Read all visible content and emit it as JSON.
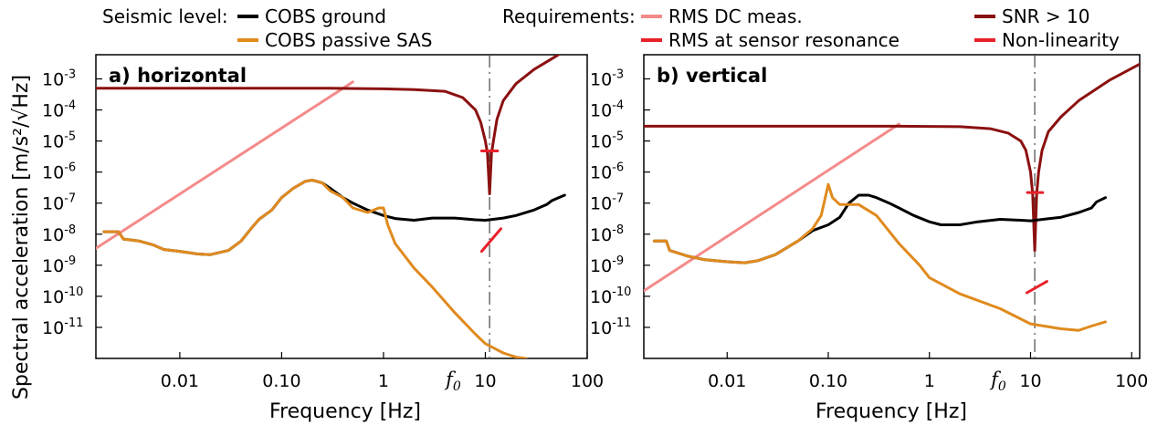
{
  "legend": {
    "seismic_title": "Seismic level:",
    "requirements_title": "Requirements:",
    "items": [
      {
        "key": "cobs_ground",
        "label": "COBS ground",
        "color": "#000000"
      },
      {
        "key": "cobs_sas",
        "label": "COBS passive SAS",
        "color": "#e08a1e"
      },
      {
        "key": "rms_dc",
        "label": "RMS DC meas.",
        "color": "#f48a8a"
      },
      {
        "key": "rms_res",
        "label": "RMS at sensor resonance",
        "color": "#e8202a"
      },
      {
        "key": "snr",
        "label": "SNR > 10",
        "color": "#8b1010"
      },
      {
        "key": "nonlin",
        "label": "Non-linearity",
        "color": "#e8202a"
      }
    ]
  },
  "y_axis_label": "Spectral acceleration [m/s²/√Hz]",
  "chart_data": [
    {
      "type": "line",
      "title": "a) horizontal",
      "xlabel": "Frequency [Hz]",
      "xscale": "log",
      "yscale": "log",
      "xlim": [
        0.0015,
        100
      ],
      "ylim": [
        1e-12,
        0.006
      ],
      "x_ticks": [
        0.01,
        0.1,
        1,
        10,
        100
      ],
      "x_tick_labels": [
        "0.01",
        "0.10",
        "1",
        "10",
        "100"
      ],
      "y_ticks": [
        0.001,
        0.0001,
        1e-05,
        1e-06,
        1e-07,
        1e-08,
        1e-09,
        1e-10,
        1e-11
      ],
      "y_tick_labels": [
        [
          "10",
          "-3"
        ],
        [
          "10",
          "-4"
        ],
        [
          "10",
          "-5"
        ],
        [
          "10",
          "-6"
        ],
        [
          "10",
          "-7"
        ],
        [
          "10",
          "-8"
        ],
        [
          "10",
          "-9"
        ],
        [
          "10",
          "-10"
        ],
        [
          "10",
          "-11"
        ]
      ],
      "f0_label": "f",
      "f0_subscript": "0",
      "f0_freq": 11,
      "series": [
        {
          "name": "COBS ground",
          "color": "#000000",
          "points": [
            [
              0.0018,
              1.2e-08
            ],
            [
              0.0025,
              1.2e-08
            ],
            [
              0.0028,
              7e-09
            ],
            [
              0.004,
              6e-09
            ],
            [
              0.0055,
              4.5e-09
            ],
            [
              0.007,
              3.2e-09
            ],
            [
              0.01,
              2.8e-09
            ],
            [
              0.015,
              2.3e-09
            ],
            [
              0.02,
              2.2e-09
            ],
            [
              0.03,
              3e-09
            ],
            [
              0.04,
              6e-09
            ],
            [
              0.05,
              1.5e-08
            ],
            [
              0.06,
              3e-08
            ],
            [
              0.08,
              6e-08
            ],
            [
              0.1,
              1.5e-07
            ],
            [
              0.13,
              3e-07
            ],
            [
              0.17,
              5e-07
            ],
            [
              0.2,
              5.5e-07
            ],
            [
              0.25,
              4.5e-07
            ],
            [
              0.3,
              3e-07
            ],
            [
              0.4,
              1.5e-07
            ],
            [
              0.5,
              1e-07
            ],
            [
              0.7,
              6e-08
            ],
            [
              1,
              4e-08
            ],
            [
              1.3,
              3.2e-08
            ],
            [
              2,
              2.8e-08
            ],
            [
              3,
              3.3e-08
            ],
            [
              5,
              3.3e-08
            ],
            [
              8,
              2.9e-08
            ],
            [
              10,
              2.8e-08
            ],
            [
              15,
              3.3e-08
            ],
            [
              20,
              4e-08
            ],
            [
              30,
              6e-08
            ],
            [
              40,
              9e-08
            ],
            [
              45,
              1.2e-07
            ],
            [
              50,
              1.4e-07
            ],
            [
              60,
              1.8e-07
            ]
          ]
        },
        {
          "name": "COBS passive SAS",
          "color": "#e08a1e",
          "points": [
            [
              0.0018,
              1.2e-08
            ],
            [
              0.0025,
              1.2e-08
            ],
            [
              0.0028,
              7e-09
            ],
            [
              0.004,
              6e-09
            ],
            [
              0.0055,
              4.5e-09
            ],
            [
              0.007,
              3.2e-09
            ],
            [
              0.01,
              2.8e-09
            ],
            [
              0.015,
              2.3e-09
            ],
            [
              0.02,
              2.2e-09
            ],
            [
              0.03,
              3e-09
            ],
            [
              0.04,
              6e-09
            ],
            [
              0.05,
              1.5e-08
            ],
            [
              0.06,
              3e-08
            ],
            [
              0.08,
              6e-08
            ],
            [
              0.1,
              1.5e-07
            ],
            [
              0.13,
              3e-07
            ],
            [
              0.17,
              5e-07
            ],
            [
              0.2,
              5.5e-07
            ],
            [
              0.25,
              4.5e-07
            ],
            [
              0.3,
              2.5e-07
            ],
            [
              0.4,
              1.5e-07
            ],
            [
              0.5,
              7e-08
            ],
            [
              0.7,
              5e-08
            ],
            [
              0.9,
              7e-08
            ],
            [
              1,
              7e-08
            ],
            [
              1.1,
              2e-08
            ],
            [
              1.3,
              5e-09
            ],
            [
              2,
              8e-10
            ],
            [
              3,
              2e-10
            ],
            [
              5,
              3e-11
            ],
            [
              8,
              6e-12
            ],
            [
              10,
              3e-12
            ],
            [
              15,
              1.5e-12
            ],
            [
              20,
              1.1e-12
            ],
            [
              25,
              1e-12
            ]
          ]
        },
        {
          "name": "RMS DC meas.",
          "color": "#f48a8a",
          "points": [
            [
              0.0015,
              3.5e-09
            ],
            [
              0.5,
              0.0008
            ]
          ]
        },
        {
          "name": "SNR > 10",
          "color": "#8b1010",
          "points": [
            [
              0.0015,
              0.0005
            ],
            [
              0.3,
              0.0005
            ],
            [
              1,
              0.00048
            ],
            [
              2,
              0.00045
            ],
            [
              4,
              0.0004
            ],
            [
              6,
              0.00025
            ],
            [
              8,
              0.0001
            ],
            [
              9,
              4e-05
            ],
            [
              10,
              1e-05
            ],
            [
              10.5,
              4e-06
            ],
            [
              11,
              2e-07
            ],
            [
              11.5,
              4e-06
            ],
            [
              12,
              1e-05
            ],
            [
              13,
              5e-05
            ],
            [
              15,
              0.0002
            ],
            [
              20,
              0.0007
            ],
            [
              30,
              0.002
            ],
            [
              50,
              0.0055
            ],
            [
              60,
              0.008
            ]
          ]
        },
        {
          "name": "RMS at sensor resonance",
          "color": "#e8202a",
          "points": [
            [
              9.2,
              4.8e-06
            ],
            [
              13.2,
              4.8e-06
            ]
          ]
        },
        {
          "name": "Non-linearity",
          "color": "#e8202a",
          "points": [
            [
              9.2,
              2.8e-09
            ],
            [
              14.2,
              1.5e-08
            ]
          ]
        }
      ]
    },
    {
      "type": "line",
      "title": "b) vertical",
      "xlabel": "Frequency [Hz]",
      "xscale": "log",
      "yscale": "log",
      "xlim": [
        0.0015,
        120
      ],
      "ylim": [
        1e-12,
        0.006
      ],
      "x_ticks": [
        0.01,
        0.1,
        1,
        10,
        100
      ],
      "x_tick_labels": [
        "0.01",
        "0.10",
        "1",
        "10",
        "100"
      ],
      "y_ticks": [
        0.001,
        0.0001,
        1e-05,
        1e-06,
        1e-07,
        1e-08,
        1e-09,
        1e-10,
        1e-11
      ],
      "y_tick_labels": [
        [
          "10",
          "-3"
        ],
        [
          "10",
          "-4"
        ],
        [
          "10",
          "-5"
        ],
        [
          "10",
          "-6"
        ],
        [
          "10",
          "-7"
        ],
        [
          "10",
          "-8"
        ],
        [
          "10",
          "-9"
        ],
        [
          "10",
          "-10"
        ],
        [
          "10",
          "-11"
        ]
      ],
      "f0_label": "f",
      "f0_subscript": "0",
      "f0_freq": 11,
      "series": [
        {
          "name": "COBS ground",
          "color": "#000000",
          "points": [
            [
              0.0019,
              6e-09
            ],
            [
              0.0025,
              6e-09
            ],
            [
              0.0027,
              3e-09
            ],
            [
              0.004,
              2e-09
            ],
            [
              0.006,
              1.5e-09
            ],
            [
              0.01,
              1.3e-09
            ],
            [
              0.015,
              1.2e-09
            ],
            [
              0.02,
              1.4e-09
            ],
            [
              0.03,
              2.2e-09
            ],
            [
              0.05,
              6e-09
            ],
            [
              0.07,
              1.3e-08
            ],
            [
              0.1,
              2e-08
            ],
            [
              0.13,
              3.5e-08
            ],
            [
              0.16,
              1e-07
            ],
            [
              0.2,
              1.8e-07
            ],
            [
              0.25,
              1.8e-07
            ],
            [
              0.3,
              1.5e-07
            ],
            [
              0.4,
              1e-07
            ],
            [
              0.5,
              7e-08
            ],
            [
              0.7,
              4e-08
            ],
            [
              1,
              2.5e-08
            ],
            [
              1.3,
              2e-08
            ],
            [
              2,
              2e-08
            ],
            [
              3,
              2.5e-08
            ],
            [
              5,
              3e-08
            ],
            [
              8,
              2.8e-08
            ],
            [
              10,
              2.7e-08
            ],
            [
              20,
              3.5e-08
            ],
            [
              30,
              5e-08
            ],
            [
              40,
              7e-08
            ],
            [
              45,
              1.1e-07
            ],
            [
              55,
              1.5e-07
            ]
          ]
        },
        {
          "name": "COBS passive SAS",
          "color": "#e08a1e",
          "points": [
            [
              0.0019,
              6e-09
            ],
            [
              0.0025,
              6e-09
            ],
            [
              0.0027,
              3e-09
            ],
            [
              0.004,
              2e-09
            ],
            [
              0.006,
              1.5e-09
            ],
            [
              0.01,
              1.3e-09
            ],
            [
              0.015,
              1.2e-09
            ],
            [
              0.02,
              1.4e-09
            ],
            [
              0.03,
              2.2e-09
            ],
            [
              0.05,
              6e-09
            ],
            [
              0.07,
              1.5e-08
            ],
            [
              0.085,
              4e-08
            ],
            [
              0.1,
              4e-07
            ],
            [
              0.11,
              1.5e-07
            ],
            [
              0.13,
              9e-08
            ],
            [
              0.2,
              9e-08
            ],
            [
              0.3,
              4e-08
            ],
            [
              0.5,
              5e-09
            ],
            [
              0.8,
              1e-09
            ],
            [
              1,
              4e-10
            ],
            [
              2,
              1.2e-10
            ],
            [
              5,
              4e-11
            ],
            [
              10,
              1.3e-11
            ],
            [
              20,
              9e-12
            ],
            [
              30,
              8e-12
            ],
            [
              40,
              1.1e-11
            ],
            [
              55,
              1.5e-11
            ]
          ]
        },
        {
          "name": "RMS DC meas.",
          "color": "#f48a8a",
          "points": [
            [
              0.0015,
              1.5e-10
            ],
            [
              0.5,
              3.5e-05
            ]
          ]
        },
        {
          "name": "SNR > 10",
          "color": "#8b1010",
          "points": [
            [
              0.0015,
              3e-05
            ],
            [
              0.5,
              3e-05
            ],
            [
              2,
              2.9e-05
            ],
            [
              4,
              2.5e-05
            ],
            [
              6,
              1.8e-05
            ],
            [
              8,
              1e-05
            ],
            [
              9,
              5e-06
            ],
            [
              10,
              1e-06
            ],
            [
              10.5,
              2e-07
            ],
            [
              11,
              3e-09
            ],
            [
              11.5,
              2e-07
            ],
            [
              12,
              1e-06
            ],
            [
              13,
              5e-06
            ],
            [
              15,
              2e-05
            ],
            [
              20,
              6e-05
            ],
            [
              30,
              0.0002
            ],
            [
              60,
              0.0009
            ],
            [
              120,
              0.003
            ]
          ]
        },
        {
          "name": "RMS at sensor resonance",
          "color": "#e8202a",
          "points": [
            [
              9.3,
              2.2e-07
            ],
            [
              13.2,
              2.2e-07
            ]
          ]
        },
        {
          "name": "Non-linearity",
          "color": "#e8202a",
          "points": [
            [
              9.2,
              1.3e-10
            ],
            [
              14.5,
              3e-10
            ]
          ]
        }
      ]
    }
  ]
}
